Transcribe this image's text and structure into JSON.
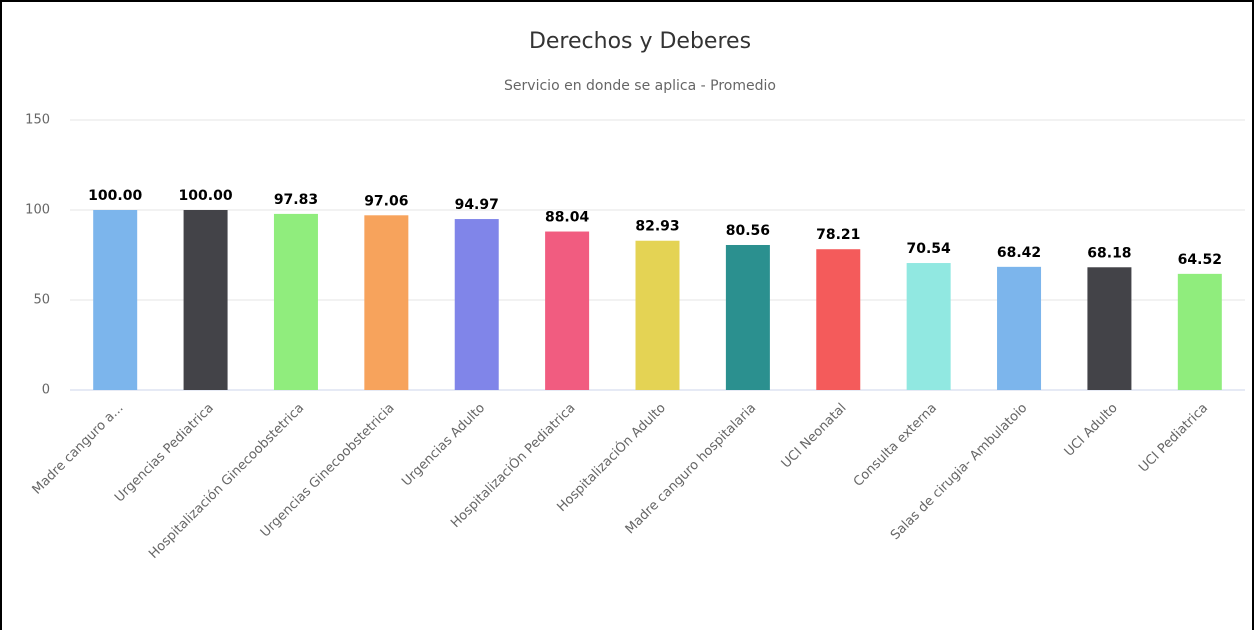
{
  "chart_data": {
    "type": "bar",
    "title": "Derechos y Deberes",
    "subtitle": "Servicio en donde se aplica - Promedio",
    "categories": [
      "Madre canguro a...",
      "Urgencias Pediatrica",
      "Hospitalización Ginecoobstetrica",
      "Urgencias Ginecoobstetricia",
      "Urgencias Adulto",
      "HospitalizaciÓn Pediatrica",
      "HospitalizaciÓn Adulto",
      "Madre canguro hospitalaria",
      "UCI Neonatal",
      "Consulta externa",
      "Salas de cirugia- Ambulatoio",
      "UCI Adulto",
      "UCI Pediatrica"
    ],
    "values": [
      100,
      100,
      97.83,
      97.06,
      94.97,
      88.04,
      82.93,
      80.56,
      78.21,
      70.54,
      68.42,
      68.18,
      64.52
    ],
    "value_labels": [
      "100.00",
      "100.00",
      "97.83",
      "97.06",
      "94.97",
      "88.04",
      "82.93",
      "80.56",
      "78.21",
      "70.54",
      "68.42",
      "68.18",
      "64.52"
    ],
    "colors": [
      "#7cb5ec",
      "#434348",
      "#90ed7d",
      "#f7a35c",
      "#8085e9",
      "#f15c80",
      "#e4d354",
      "#2b908f",
      "#f45b5b",
      "#91e8e1",
      "#7cb5ec",
      "#434348",
      "#90ed7d"
    ],
    "ylim": [
      0,
      150
    ],
    "yticks": [
      0,
      50,
      100,
      150
    ],
    "grid": true
  }
}
